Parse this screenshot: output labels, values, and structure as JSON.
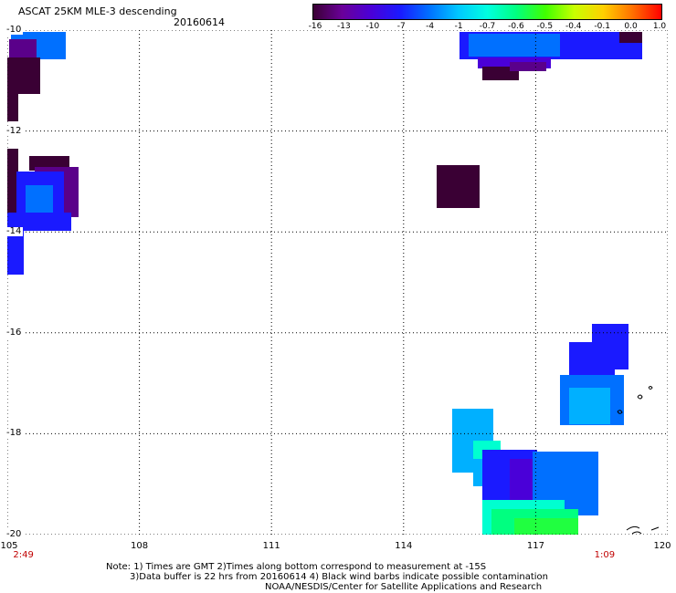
{
  "header": {
    "title": "ASCAT 25KM MLE-3 descending",
    "date": "20160614"
  },
  "colorbar": {
    "ticks": [
      "-16",
      "-13",
      "-10",
      "-7",
      "-4",
      "-1",
      "-0.7",
      "-0.6",
      "-0.5",
      "-0.4",
      "-0.1",
      "0.0",
      "1.0"
    ],
    "colors": [
      "#3a0034",
      "#6a0099",
      "#4a00d8",
      "#1a1aff",
      "#0070ff",
      "#00c8ff",
      "#00ffe0",
      "#00ff80",
      "#40ff00",
      "#c8ff00",
      "#ffd000",
      "#ff7000",
      "#ff0000"
    ]
  },
  "map": {
    "lat_labels": [
      "-10",
      "-12",
      "-14",
      "-16",
      "-18",
      "-20"
    ],
    "lon_labels": [
      "105",
      "108",
      "111",
      "114",
      "117",
      "120"
    ],
    "lat_values": [
      -10,
      -12,
      -14,
      -16,
      -18,
      -20
    ],
    "lon_values": [
      105,
      108,
      111,
      114,
      117,
      120
    ],
    "lat_range": [
      -20,
      -10
    ],
    "lon_range": [
      105,
      120
    ],
    "pass_times": [
      {
        "label": "2:49",
        "lon": 105.2
      },
      {
        "label": "1:09",
        "lon": 118.4
      }
    ]
  },
  "notes": {
    "line1": "Note: 1) Times are GMT 2)Times along bottom correspond to measurement at -15S",
    "line2": "3)Data buffer is 22 hrs from 20160614 4) Black wind barbs indicate possible contamination",
    "line3": "NOAA/NESDIS/Center for Satellite Applications and Research"
  }
}
